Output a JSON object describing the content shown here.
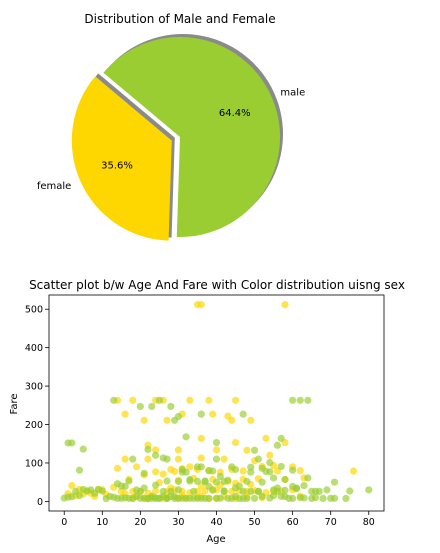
{
  "chart_data": [
    {
      "type": "pie",
      "title": "Distribution of Male and Female",
      "slices": [
        {
          "label": "male",
          "value": 64.4,
          "pct_label": "64.4%",
          "color": "#9acd32",
          "explode": false
        },
        {
          "label": "female",
          "value": 35.6,
          "pct_label": "35.6%",
          "color": "#ffd700",
          "explode": true
        }
      ],
      "shadow": true
    },
    {
      "type": "scatter",
      "title": "Scatter plot b/w Age And Fare with Color distribution uisng sex",
      "xlabel": "Age",
      "ylabel": "Fare",
      "xlim": [
        -4,
        84
      ],
      "ylim": [
        -25,
        537
      ],
      "xticks": [
        0,
        10,
        20,
        30,
        40,
        50,
        60,
        70,
        80
      ],
      "yticks": [
        0,
        100,
        200,
        300,
        400,
        500
      ],
      "grid": false,
      "series": [
        {
          "color": "#ffd700",
          "points": [
            [
              35,
              512
            ],
            [
              36,
              512
            ],
            [
              58,
              512
            ],
            [
              14,
              263
            ],
            [
              18,
              263
            ],
            [
              24,
              263
            ],
            [
              26,
              263
            ],
            [
              33,
              263
            ],
            [
              38,
              263
            ],
            [
              45,
              263
            ],
            [
              16,
              227
            ],
            [
              31,
              227
            ],
            [
              39,
              227
            ],
            [
              43,
              222
            ],
            [
              21,
              211
            ],
            [
              27,
              211
            ],
            [
              44,
              211
            ],
            [
              49,
              211
            ],
            [
              36,
              164
            ],
            [
              45,
              153
            ],
            [
              53,
              164
            ],
            [
              58,
              153
            ],
            [
              22,
              146
            ],
            [
              24,
              134
            ],
            [
              30,
              134
            ],
            [
              40,
              134
            ],
            [
              48,
              133
            ],
            [
              54,
              120
            ],
            [
              16,
              110
            ],
            [
              22,
              110
            ],
            [
              30,
              110
            ],
            [
              36,
              113
            ],
            [
              42,
              110
            ],
            [
              50,
              106
            ],
            [
              55,
              93
            ],
            [
              60,
              90
            ],
            [
              62,
              80
            ],
            [
              76,
              79
            ],
            [
              14,
              86
            ],
            [
              19,
              90
            ],
            [
              24,
              77
            ],
            [
              28,
              83
            ],
            [
              31,
              85
            ],
            [
              33,
              90
            ],
            [
              35,
              83
            ],
            [
              38,
              80
            ],
            [
              41,
              76
            ],
            [
              44,
              83
            ],
            [
              47,
              79
            ],
            [
              52,
              91
            ],
            [
              56,
              79
            ],
            [
              29,
              78
            ],
            [
              2,
              41
            ],
            [
              4,
              31
            ],
            [
              6,
              27
            ],
            [
              9,
              31
            ],
            [
              13,
              37
            ],
            [
              17,
              57
            ],
            [
              21,
              69
            ],
            [
              26,
              71
            ],
            [
              30,
              55
            ],
            [
              34,
              60
            ],
            [
              39,
              57
            ],
            [
              43,
              52
            ],
            [
              47,
              57
            ],
            [
              51,
              59
            ],
            [
              58,
              57
            ],
            [
              63,
              61
            ],
            [
              1,
              20
            ],
            [
              3,
              15
            ],
            [
              7,
              21
            ],
            [
              10,
              30
            ],
            [
              15,
              26
            ],
            [
              18,
              26
            ],
            [
              20,
              26
            ],
            [
              22,
              21
            ],
            [
              24,
              27
            ],
            [
              27,
              26
            ],
            [
              29,
              30
            ],
            [
              31,
              26
            ],
            [
              33,
              23
            ],
            [
              35,
              26
            ],
            [
              37,
              27
            ],
            [
              40,
              30
            ],
            [
              42,
              13
            ],
            [
              44,
              26
            ],
            [
              46,
              27
            ],
            [
              48,
              26
            ],
            [
              50,
              28
            ],
            [
              53,
              23
            ],
            [
              55,
              26
            ],
            [
              57,
              27
            ],
            [
              60,
              30
            ],
            [
              19,
              13
            ],
            [
              23,
              13
            ],
            [
              27,
              10
            ],
            [
              30,
              7.8
            ],
            [
              32,
              8.7
            ],
            [
              36,
              13
            ],
            [
              40,
              7.9
            ],
            [
              45,
              7.2
            ],
            [
              52,
              10
            ],
            [
              18,
              7.9
            ],
            [
              21,
              8.6
            ],
            [
              26,
              7.9
            ],
            [
              31,
              15
            ],
            [
              35,
              10
            ],
            [
              38,
              7.2
            ],
            [
              48,
              13
            ],
            [
              16,
              20
            ],
            [
              11,
              18
            ],
            [
              8,
              13
            ],
            [
              5,
              19
            ],
            [
              28,
              35
            ],
            [
              36,
              40
            ],
            [
              41,
              42
            ],
            [
              45,
              47
            ],
            [
              49,
              44
            ],
            [
              39,
              31
            ],
            [
              25,
              49
            ],
            [
              62,
              14
            ]
          ]
        },
        {
          "color": "#9acd32",
          "points": [
            [
              1,
              152
            ],
            [
              2,
              152
            ],
            [
              4,
              81
            ],
            [
              5,
              136
            ],
            [
              13,
              263
            ],
            [
              20,
              247
            ],
            [
              23,
              247
            ],
            [
              25,
              263
            ],
            [
              28,
              247
            ],
            [
              30,
              221
            ],
            [
              36,
              227
            ],
            [
              47,
              227
            ],
            [
              56,
              146
            ],
            [
              57,
              164
            ],
            [
              62,
              263
            ],
            [
              60,
              263
            ],
            [
              64,
              263
            ],
            [
              71,
              50
            ],
            [
              75,
              27
            ],
            [
              80,
              30
            ],
            [
              70,
              8
            ],
            [
              66,
              10
            ],
            [
              64,
              61
            ],
            [
              65,
              26
            ],
            [
              61,
              33
            ],
            [
              58,
              29
            ],
            [
              60,
              81
            ],
            [
              55,
              30
            ],
            [
              56,
              35
            ],
            [
              54,
              77
            ],
            [
              53,
              78
            ],
            [
              52,
              50
            ],
            [
              51,
              26
            ],
            [
              50,
              133
            ],
            [
              49,
              89
            ],
            [
              48,
              52
            ],
            [
              47,
              26
            ],
            [
              45,
              83
            ],
            [
              44,
              90
            ],
            [
              42,
              52
            ],
            [
              40,
              153
            ],
            [
              39,
              79
            ],
            [
              38,
              80
            ],
            [
              37,
              53
            ],
            [
              36,
              90
            ],
            [
              35,
              52
            ],
            [
              34,
              26
            ],
            [
              33,
              53
            ],
            [
              32,
              76
            ],
            [
              31,
              83
            ],
            [
              30,
              30
            ],
            [
              29,
              13
            ],
            [
              28,
              26
            ],
            [
              27,
              7.9
            ],
            [
              26,
              13
            ],
            [
              25,
              7.9
            ],
            [
              24,
              8.7
            ],
            [
              23,
              7.9
            ],
            [
              22,
              7.2
            ],
            [
              21,
              7.9
            ],
            [
              20,
              8.1
            ],
            [
              19,
              13
            ],
            [
              18,
              7.8
            ],
            [
              17,
              7.9
            ],
            [
              16,
              9.2
            ],
            [
              15,
              8.1
            ],
            [
              14,
              7.9
            ],
            [
              13,
              11
            ],
            [
              12,
              13
            ],
            [
              11,
              7.3
            ],
            [
              10,
              27
            ],
            [
              9,
              31
            ],
            [
              8,
              21
            ],
            [
              7,
              30
            ],
            [
              6,
              27
            ],
            [
              3,
              26
            ],
            [
              2,
              12
            ],
            [
              0,
              8.5
            ],
            [
              1,
              11
            ],
            [
              4,
              15
            ],
            [
              5,
              31
            ],
            [
              40,
              7.9
            ],
            [
              41,
              8.1
            ],
            [
              43,
              7.9
            ],
            [
              46,
              7.2
            ],
            [
              48,
              7.8
            ],
            [
              50,
              7.9
            ],
            [
              52,
              13
            ],
            [
              54,
              8.7
            ],
            [
              56,
              26
            ],
            [
              58,
              13
            ],
            [
              60,
              7.8
            ],
            [
              62,
              10
            ],
            [
              65,
              7.8
            ],
            [
              68,
              7.8
            ],
            [
              71,
              7.9
            ],
            [
              74,
              7.8
            ],
            [
              19,
              30
            ],
            [
              20,
              26
            ],
            [
              21,
              73
            ],
            [
              22,
              7.2
            ],
            [
              23,
              13
            ],
            [
              24,
              8.1
            ],
            [
              25,
              7.9
            ],
            [
              26,
              26
            ],
            [
              27,
              7.8
            ],
            [
              28,
              13
            ],
            [
              29,
              7.8
            ],
            [
              30,
              7.9
            ],
            [
              31,
              8
            ],
            [
              32,
              7.8
            ],
            [
              33,
              7.9
            ],
            [
              34,
              8.1
            ],
            [
              35,
              8.1
            ],
            [
              36,
              7.9
            ],
            [
              37,
              7.8
            ],
            [
              38,
              7.9
            ],
            [
              39,
              29
            ],
            [
              42,
              27
            ],
            [
              44,
              7.9
            ],
            [
              45,
              13
            ],
            [
              47,
              7.8
            ],
            [
              49,
              26
            ],
            [
              51,
              26
            ],
            [
              55,
              15
            ],
            [
              57,
              13
            ],
            [
              59,
              7.9
            ],
            [
              61,
              35
            ],
            [
              63,
              9
            ],
            [
              66,
              26
            ],
            [
              69,
              30
            ],
            [
              33,
              57
            ],
            [
              35,
              90
            ],
            [
              37,
              51
            ],
            [
              41,
              65
            ],
            [
              43,
              55
            ],
            [
              22,
              135
            ],
            [
              24,
              120
            ],
            [
              26,
              113
            ],
            [
              27,
              110
            ],
            [
              31,
              76
            ],
            [
              18,
              110
            ],
            [
              17,
              53
            ],
            [
              16,
              39
            ],
            [
              15,
              40
            ],
            [
              14,
              46
            ],
            [
              21,
              35
            ],
            [
              24,
              42
            ],
            [
              27,
              53
            ],
            [
              30,
              52
            ],
            [
              38,
              39
            ],
            [
              40,
              50
            ],
            [
              42,
              26
            ],
            [
              45,
              35
            ],
            [
              46,
              40
            ],
            [
              49,
              76
            ],
            [
              52,
              86
            ],
            [
              55,
              61
            ],
            [
              58,
              57
            ],
            [
              60,
              39
            ],
            [
              63,
              41
            ],
            [
              67,
              26
            ],
            [
              32,
              168
            ],
            [
              29,
              211
            ],
            [
              40,
              110
            ],
            [
              51,
              110
            ],
            [
              54,
              101
            ],
            [
              57,
              91
            ]
          ]
        }
      ]
    }
  ]
}
